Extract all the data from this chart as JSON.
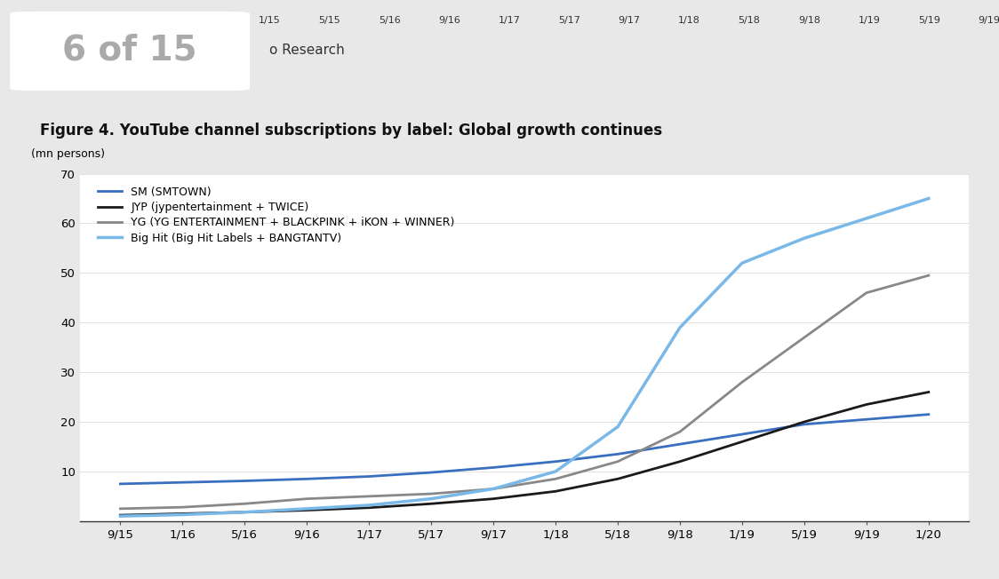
{
  "title": "Figure 4. YouTube channel subscriptions by label: Global growth continues",
  "ylabel": "(mn persons)",
  "ylim": [
    0,
    70
  ],
  "yticks": [
    0,
    10,
    20,
    30,
    40,
    50,
    60,
    70
  ],
  "x_labels": [
    "9/15",
    "1/16",
    "5/16",
    "9/16",
    "1/17",
    "5/17",
    "9/17",
    "1/18",
    "5/18",
    "9/18",
    "1/19",
    "5/19",
    "9/19",
    "1/20"
  ],
  "fig_bg_color": "#e8e8e8",
  "header_bg_color": "#d0d0d0",
  "title_bar_color": "#d9d9d9",
  "plot_bg_color": "#ffffff",
  "header_text": "6 of 15",
  "header_sub": "o Research",
  "series": [
    {
      "name": "SM (SMTOWN)",
      "color": "#3a6ebf",
      "linewidth": 2.0,
      "data": [
        7.5,
        7.8,
        8.1,
        8.5,
        9.0,
        9.8,
        10.8,
        12.0,
        13.5,
        15.5,
        17.5,
        19.5,
        20.5,
        21.5
      ]
    },
    {
      "name": "JYP (jypentertainment + TWICE)",
      "color": "#1a1a1a",
      "linewidth": 2.0,
      "data": [
        1.2,
        1.5,
        1.8,
        2.2,
        2.7,
        3.5,
        4.5,
        6.0,
        8.5,
        12.0,
        16.0,
        20.0,
        23.5,
        26.0
      ]
    },
    {
      "name": "YG (YG ENTERTAINMENT + BLACKPINK + iKON + WINNER)",
      "color": "#888888",
      "linewidth": 2.0,
      "data": [
        2.5,
        2.8,
        3.5,
        4.5,
        5.0,
        5.5,
        6.5,
        8.5,
        12.0,
        18.0,
        28.0,
        37.0,
        46.0,
        49.5
      ]
    },
    {
      "name": "Big Hit (Big Hit Labels + BANGTANTV)",
      "color": "#7ab8e8",
      "linewidth": 2.5,
      "data": [
        1.0,
        1.3,
        1.8,
        2.5,
        3.2,
        4.5,
        6.5,
        10.0,
        19.0,
        39.0,
        52.0,
        57.0,
        61.0,
        65.0
      ]
    }
  ]
}
